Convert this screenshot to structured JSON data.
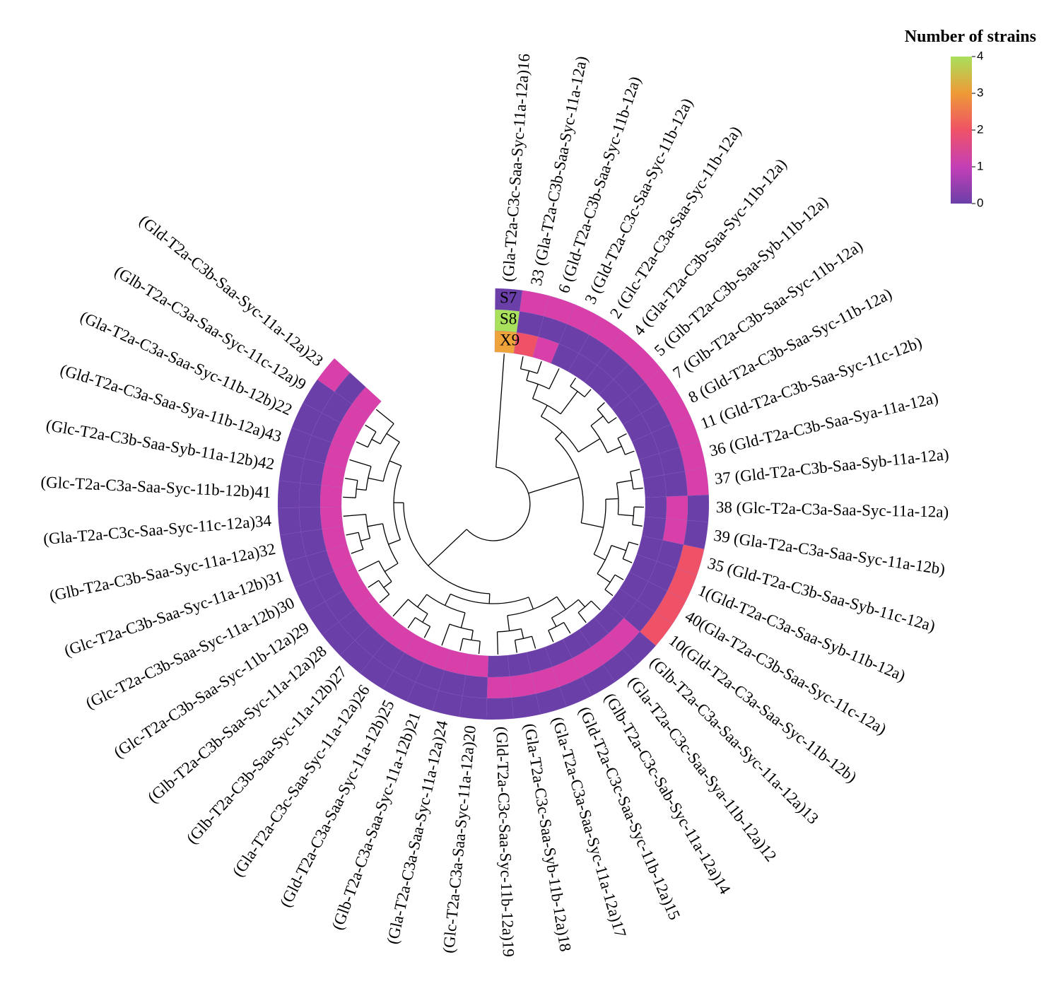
{
  "chart_data": {
    "type": "heatmap",
    "layout": "circular",
    "title": "",
    "legend": {
      "title": "Number of strains",
      "ticks": [
        "0",
        "1",
        "2",
        "3",
        "4"
      ],
      "min": 0,
      "max": 4,
      "colors": [
        "#6b3fa8",
        "#a43fc0",
        "#e23d8c",
        "#f07a3c",
        "#e8a52a",
        "#a6e05a"
      ],
      "placement": "top-right"
    },
    "tracks": [
      "S7",
      "S8",
      "X9"
    ],
    "rows": [
      {
        "id": "16",
        "label": "(Gla-T2a-C3c-Saa-Syc-11a-12a)16",
        "S7": 0,
        "S8": 4,
        "X9": 3
      },
      {
        "id": "33",
        "label": "33 (Gla-T2a-C3b-Saa-Syc-11a-12a)",
        "S7": 1,
        "S8": 0,
        "X9": 2
      },
      {
        "id": "6",
        "label": "6 (Gld-T2a-C3b-Saa-Syc-11b-12a)",
        "S7": 1,
        "S8": 0,
        "X9": 1
      },
      {
        "id": "3",
        "label": "3 (Gld-T2a-C3c-Saa-Syc-11b-12a)",
        "S7": 1,
        "S8": 0,
        "X9": 0
      },
      {
        "id": "2",
        "label": "2 (Glc-T2a-C3a-Saa-Syc-11b-12a)",
        "S7": 1,
        "S8": 0,
        "X9": 0
      },
      {
        "id": "4",
        "label": "4 (Gla-T2a-C3b-Saa-Syc-11b-12a)",
        "S7": 1,
        "S8": 0,
        "X9": 0
      },
      {
        "id": "5",
        "label": "5 (Glb-T2a-C3b-Saa-Syb-11b-12a)",
        "S7": 1,
        "S8": 0,
        "X9": 0
      },
      {
        "id": "7",
        "label": "7 (Glb-T2a-C3b-Saa-Syc-11b-12a)",
        "S7": 1,
        "S8": 0,
        "X9": 0
      },
      {
        "id": "8",
        "label": "8 (Gld-T2a-C3b-Saa-Syc-11b-12a)",
        "S7": 1,
        "S8": 0,
        "X9": 0
      },
      {
        "id": "11",
        "label": "11 (Gld-T2a-C3b-Saa-Syc-11c-12b)",
        "S7": 1,
        "S8": 0,
        "X9": 0
      },
      {
        "id": "36",
        "label": "36 (Gld-T2a-C3b-Saa-Sya-11a-12a)",
        "S7": 1,
        "S8": 0,
        "X9": 0
      },
      {
        "id": "37",
        "label": "37 (Gld-T2a-C3b-Saa-Syb-11a-12a)",
        "S7": 1,
        "S8": 0,
        "X9": 0
      },
      {
        "id": "38",
        "label": "38 (Glc-T2a-C3a-Saa-Syc-11a-12a)",
        "S7": 0,
        "S8": 1,
        "X9": 0
      },
      {
        "id": "39",
        "label": "39 (Gla-T2a-C3a-Saa-Syc-11a-12b)",
        "S7": 0,
        "S8": 1,
        "X9": 0
      },
      {
        "id": "35",
        "label": "35 (Gld-T2a-C3b-Saa-Syb-11c-12a)",
        "S7": 2,
        "S8": 0,
        "X9": 0
      },
      {
        "id": "1",
        "label": "1(Gld-T2a-C3a-Saa-Syb-11b-12a)",
        "S7": 2,
        "S8": 0,
        "X9": 0
      },
      {
        "id": "40",
        "label": "40(Gla-T2a-C3b-Saa-Syc-11c-12a)",
        "S7": 2,
        "S8": 0,
        "X9": 0
      },
      {
        "id": "10",
        "label": "10(Gld-T2a-C3a-Saa-Syc-11b-12b)",
        "S7": 2,
        "S8": 0,
        "X9": 0
      },
      {
        "id": "13",
        "label": "(Glb-T2a-C3a-Saa-Syc-11a-12a)13",
        "S7": 0,
        "S8": 1,
        "X9": 0
      },
      {
        "id": "12",
        "label": "(Gla-T2a-C3c-Saa-Sya-11b-12a)12",
        "S7": 0,
        "S8": 1,
        "X9": 0
      },
      {
        "id": "14",
        "label": "(Glb-T2a-C3c-Sab-Syc-11a-12a)14",
        "S7": 0,
        "S8": 1,
        "X9": 0
      },
      {
        "id": "15",
        "label": "(Gld-T2a-C3c-Saa-Syc-11b-12a)15",
        "S7": 0,
        "S8": 1,
        "X9": 0
      },
      {
        "id": "17",
        "label": "(Gla-T2a-C3a-Saa-Syc-11a-12a)17",
        "S7": 0,
        "S8": 1,
        "X9": 0
      },
      {
        "id": "18",
        "label": "(Gla-T2a-C3c-Saa-Syb-11b-12a)18",
        "S7": 0,
        "S8": 1,
        "X9": 0
      },
      {
        "id": "19",
        "label": "(Gld-T2a-C3c-Saa-Syc-11b-12a)19",
        "S7": 0,
        "S8": 1,
        "X9": 0
      },
      {
        "id": "20",
        "label": "(Glc-T2a-C3a-Saa-Syc-11a-12a)20",
        "S7": 0,
        "S8": 0,
        "X9": 1
      },
      {
        "id": "24",
        "label": "(Gla-T2a-C3a-Saa-Syc-11a-12a)24",
        "S7": 0,
        "S8": 0,
        "X9": 1
      },
      {
        "id": "21",
        "label": "(Glb-T2a-C3a-Saa-Syc-11a-12b)21",
        "S7": 0,
        "S8": 0,
        "X9": 1
      },
      {
        "id": "25",
        "label": "(Gld-T2a-C3a-Saa-Syc-11a-12b)25",
        "S7": 0,
        "S8": 0,
        "X9": 1
      },
      {
        "id": "26",
        "label": "(Gla-T2a-C3c-Saa-Syc-11a-12a)26",
        "S7": 0,
        "S8": 0,
        "X9": 1
      },
      {
        "id": "27",
        "label": "(Glb-T2a-C3b-Saa-Syc-11a-12b)27",
        "S7": 0,
        "S8": 0,
        "X9": 1
      },
      {
        "id": "28",
        "label": "(Glb-T2a-C3b-Saa-Syc-11a-12a)28",
        "S7": 0,
        "S8": 0,
        "X9": 1
      },
      {
        "id": "29",
        "label": "(Glc-T2a-C3b-Saa-Syc-11b-12a)29",
        "S7": 0,
        "S8": 0,
        "X9": 1
      },
      {
        "id": "30",
        "label": "(Glc-T2a-C3b-Saa-Syc-11a-12b)30",
        "S7": 0,
        "S8": 0,
        "X9": 1
      },
      {
        "id": "31",
        "label": "(Glc-T2a-C3b-Saa-Syc-11a-12b)31",
        "S7": 0,
        "S8": 0,
        "X9": 1
      },
      {
        "id": "32",
        "label": "(Glb-T2a-C3b-Saa-Syc-11a-12a)32",
        "S7": 0,
        "S8": 0,
        "X9": 1
      },
      {
        "id": "34",
        "label": "(Gla-T2a-C3c-Saa-Syc-11c-12a)34",
        "S7": 0,
        "S8": 0,
        "X9": 1
      },
      {
        "id": "41",
        "label": "(Glc-T2a-C3a-Saa-Syc-11b-12b)41",
        "S7": 0,
        "S8": 0,
        "X9": 1
      },
      {
        "id": "42",
        "label": "(Glc-T2a-C3b-Saa-Syb-11a-12b)42",
        "S7": 0,
        "S8": 0,
        "X9": 1
      },
      {
        "id": "43",
        "label": "(Gld-T2a-C3a-Saa-Sya-11b-12a)43",
        "S7": 0,
        "S8": 0,
        "X9": 1
      },
      {
        "id": "22",
        "label": "(Gla-T2a-C3a-Saa-Syc-11b-12b)22",
        "S7": 0,
        "S8": 0,
        "X9": 1
      },
      {
        "id": "9",
        "label": "(Glb-T2a-C3a-Saa-Syc-11c-12a)9",
        "S7": 0,
        "S8": 0,
        "X9": 1
      },
      {
        "id": "23",
        "label": "(Gld-T2a-C3b-Saa-Syc-11a-12a)23",
        "S7": 1,
        "S8": 0,
        "X9": 1
      }
    ],
    "dendrogram": {
      "groups": [
        [
          "33",
          "6",
          "3",
          "2",
          "4",
          "5",
          "7",
          "8",
          "11",
          "36",
          "37",
          "38",
          "39",
          "35",
          "1",
          "40",
          "10"
        ],
        [
          "13",
          "12",
          "14",
          "15",
          "17",
          "18",
          "19",
          "20",
          "24",
          "21",
          "25",
          "26",
          "27",
          "28",
          "29",
          "30",
          "31",
          "32",
          "34",
          "41",
          "42",
          "43",
          "22",
          "9",
          "23"
        ],
        [
          "16"
        ]
      ]
    }
  }
}
